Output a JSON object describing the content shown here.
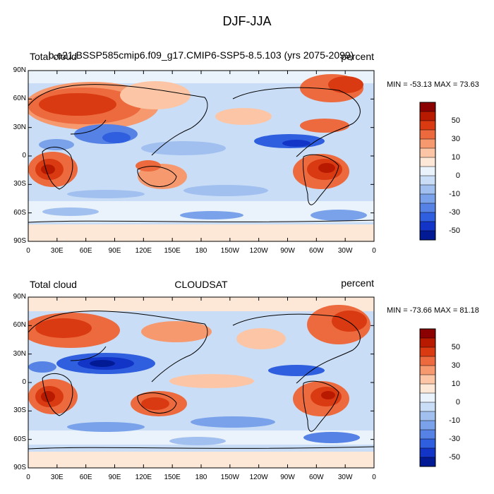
{
  "figure": {
    "title": "DJF-JJA"
  },
  "panels": [
    {
      "left_label": "Total cloud",
      "center_label": "b.e21.BSSP585cmip6.f09_g17.CMIP6-SSP5-8.5.103 (yrs 2075-2099)",
      "right_label": "percent",
      "stats": "MIN = -53.13 MAX =  73.63"
    },
    {
      "left_label": "Total cloud",
      "center_label": "CLOUDSAT",
      "right_label": "percent",
      "stats": "MIN = -73.66 MAX =  81.18"
    }
  ],
  "axes": {
    "lat_labels": [
      "90N",
      "60N",
      "30N",
      "0",
      "30S",
      "60S",
      "90S"
    ],
    "lon_labels": [
      "0",
      "30E",
      "60E",
      "90E",
      "120E",
      "150E",
      "180",
      "150W",
      "120W",
      "90W",
      "60W",
      "30W",
      "0"
    ]
  },
  "colorbar": {
    "labels": [
      "50",
      "30",
      "10",
      "0",
      "-10",
      "-30",
      "-50"
    ],
    "colors": [
      "#8b0000",
      "#b81a00",
      "#d93a12",
      "#ec6a3d",
      "#f6996f",
      "#fcc6a6",
      "#fde8d8",
      "#eaf3fb",
      "#c9ddf6",
      "#a1c0f0",
      "#7aa2ea",
      "#5582e4",
      "#2f5ede",
      "#1235c8",
      "#021a94"
    ]
  }
}
